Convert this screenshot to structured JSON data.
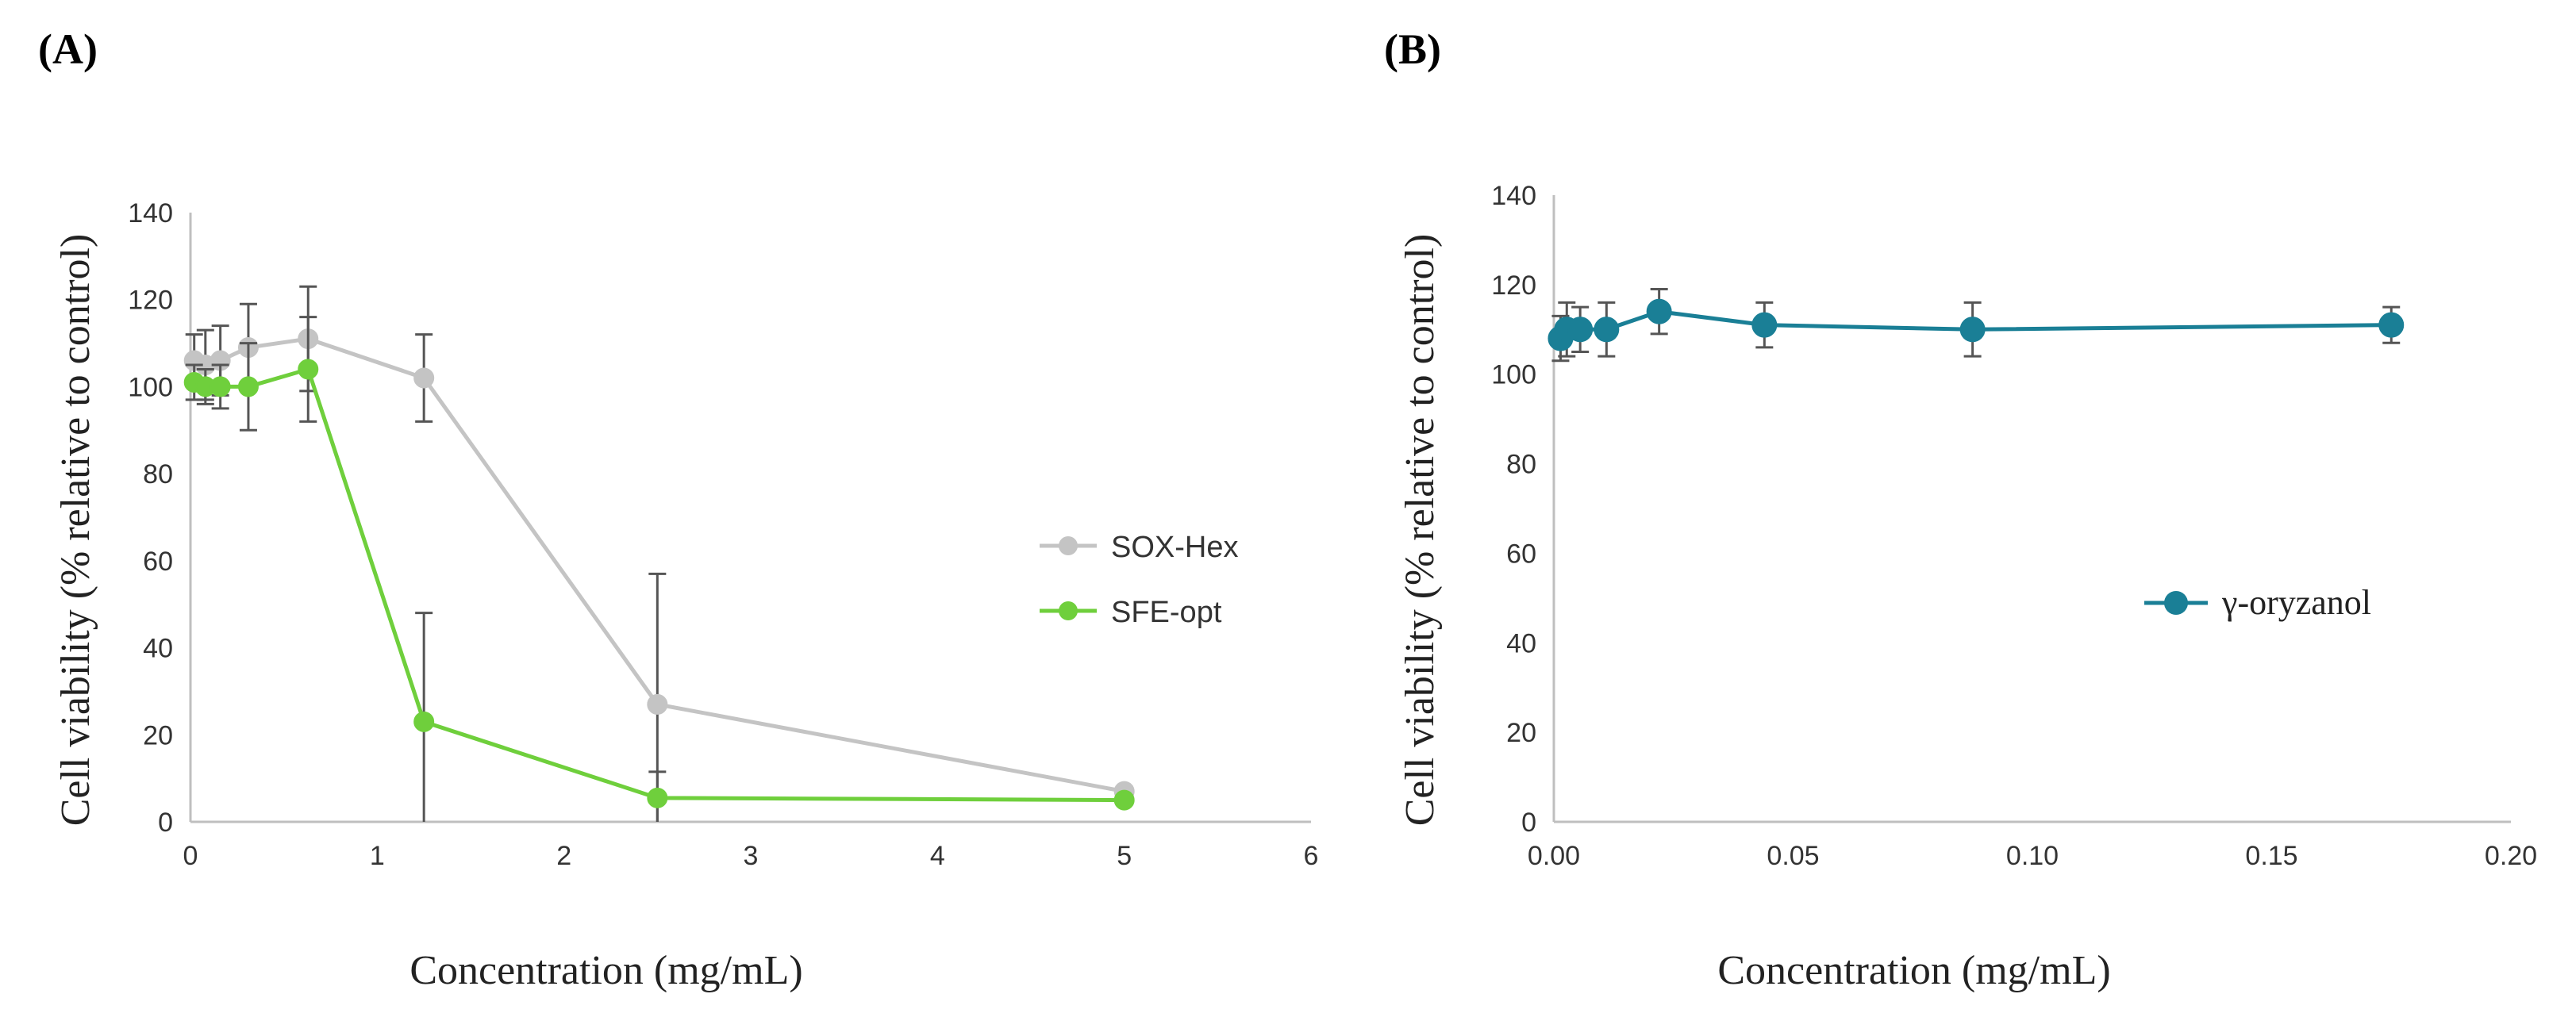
{
  "chart_data": [
    {
      "panel_label": "(A)",
      "type": "line",
      "xlabel": "Concentration (mg/mL)",
      "ylabel": "Cell viability (% relative to control)",
      "xlim": [
        0,
        6
      ],
      "ylim": [
        0,
        140
      ],
      "x_ticks": [
        0,
        1,
        2,
        3,
        4,
        5,
        6
      ],
      "x_tick_labels": [
        "0",
        "1",
        "2",
        "3",
        "4",
        "5",
        "6"
      ],
      "y_ticks": [
        0,
        20,
        40,
        60,
        80,
        100,
        120,
        140
      ],
      "y_tick_labels": [
        "0",
        "20",
        "40",
        "60",
        "80",
        "100",
        "120",
        "140"
      ],
      "legend_position": "right-middle",
      "series": [
        {
          "name": "SOX-Hex",
          "color": "#c4c4c4",
          "x": [
            0.02,
            0.08,
            0.16,
            0.31,
            0.63,
            1.25,
            2.5,
            5.0
          ],
          "y": [
            106,
            105,
            106,
            109,
            111,
            102,
            27,
            7
          ],
          "err": [
            6,
            8,
            8,
            10,
            12,
            10,
            30,
            1
          ]
        },
        {
          "name": "SFE-opt",
          "color": "#6fcf3c",
          "x": [
            0.02,
            0.08,
            0.16,
            0.31,
            0.63,
            1.25,
            2.5,
            5.0
          ],
          "y": [
            101,
            100,
            100,
            100,
            104,
            23,
            5.5,
            5
          ],
          "err": [
            4,
            4,
            5,
            10,
            12,
            25,
            6,
            1
          ]
        }
      ]
    },
    {
      "panel_label": "(B)",
      "type": "line",
      "xlabel": "Concentration (mg/mL)",
      "ylabel": "Cell viability (% relative to control)",
      "xlim": [
        0,
        0.2
      ],
      "ylim": [
        0,
        140
      ],
      "x_ticks": [
        0,
        0.05,
        0.1,
        0.15,
        0.2
      ],
      "x_tick_labels": [
        "0.00",
        "0.05",
        "0.10",
        "0.15",
        "0.20"
      ],
      "y_ticks": [
        0,
        20,
        40,
        60,
        80,
        100,
        120,
        140
      ],
      "y_tick_labels": [
        "0",
        "20",
        "40",
        "60",
        "80",
        "100",
        "120",
        "140"
      ],
      "legend_position": "right-middle",
      "series": [
        {
          "name": "γ-oryzanol",
          "color": "#1a7f96",
          "x": [
            0.0014,
            0.0027,
            0.0055,
            0.011,
            0.022,
            0.044,
            0.0875,
            0.175
          ],
          "y": [
            108,
            110,
            110,
            110,
            114,
            111,
            110,
            111
          ],
          "err": [
            5,
            6,
            5,
            6,
            5,
            5,
            6,
            4
          ]
        }
      ]
    }
  ]
}
